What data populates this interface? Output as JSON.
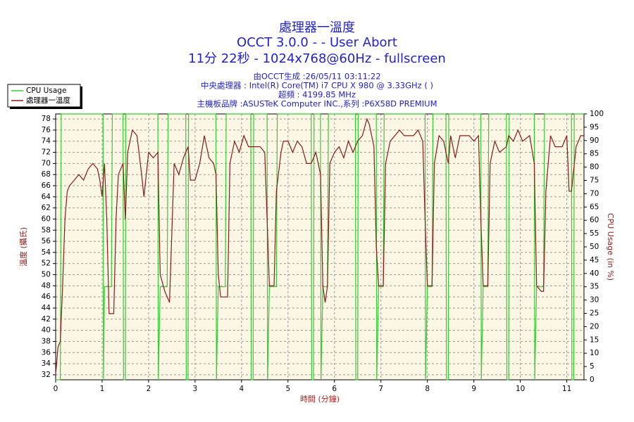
{
  "chart_data": {
    "type": "line",
    "title": "處理器一溫度",
    "subtitle": "OCCT 3.0.0 -  - User Abort",
    "subtitle2": "11分 22秒 - 1024x768@60Hz - fullscreen",
    "info": [
      "由OCCT生成 :26/05/11 03:11:22",
      "中央處理器 : Intel(R) Core(TM) i7 CPU X 980 @ 3.33GHz (  )",
      "超頻 : 4199.85 MHz",
      "主機板品牌 :ASUSTeK Computer INC.,系列 :P6X58D PREMIUM"
    ],
    "x_label": "時間 (分鐘)",
    "y_label": "溫度 (攝氏)",
    "y2_label": "CPU Usage (in %)",
    "xlim": [
      0,
      11.37
    ],
    "xticks": [
      0,
      1,
      2,
      3,
      4,
      5,
      6,
      7,
      8,
      9,
      10,
      11
    ],
    "ylim": [
      31.1,
      78.9
    ],
    "yticks": [
      32,
      34,
      36,
      38,
      40,
      42,
      44,
      46,
      48,
      50,
      52,
      54,
      56,
      58,
      60,
      62,
      64,
      66,
      68,
      70,
      72,
      74,
      76,
      78
    ],
    "y2lim": [
      0,
      100
    ],
    "y2ticks": [
      0,
      5,
      10,
      15,
      20,
      25,
      30,
      35,
      40,
      45,
      50,
      55,
      60,
      65,
      70,
      75,
      80,
      85,
      90,
      95,
      100
    ],
    "grid": true,
    "legend": "upper left",
    "series": [
      {
        "name": "CPU Usage",
        "color": "#33cc33",
        "axis": "y2",
        "x": [
          0,
          0.1,
          0.12,
          1.02,
          1.03,
          1.05,
          1.2,
          1.22,
          1.45,
          1.46,
          1.5,
          1.51,
          2.2,
          2.21,
          2.25,
          2.4,
          2.42,
          2.8,
          2.81,
          2.85,
          2.86,
          3.45,
          3.46,
          3.5,
          3.65,
          3.67,
          4.2,
          4.21,
          4.25,
          4.26,
          4.55,
          4.56,
          4.6,
          4.75,
          4.77,
          5.5,
          5.51,
          5.55,
          5.56,
          5.7,
          5.71,
          5.75,
          5.85,
          5.87,
          6.45,
          6.46,
          6.5,
          6.51,
          6.9,
          6.91,
          6.95,
          7.05,
          7.07,
          7.95,
          7.96,
          8.0,
          8.1,
          8.12,
          8.4,
          8.41,
          8.45,
          8.46,
          9.15,
          9.16,
          9.2,
          9.3,
          9.32,
          9.7,
          9.71,
          9.75,
          9.76,
          10.3,
          10.31,
          10.35,
          10.5,
          10.52,
          11.1,
          11.11,
          11.15,
          11.16,
          11.37
        ],
        "values": [
          0,
          0,
          100,
          100,
          0,
          35,
          35,
          100,
          100,
          0,
          0,
          100,
          100,
          0,
          35,
          35,
          100,
          100,
          0,
          0,
          100,
          100,
          0,
          35,
          35,
          100,
          100,
          0,
          0,
          100,
          100,
          0,
          35,
          35,
          100,
          100,
          0,
          0,
          100,
          100,
          0,
          35,
          35,
          100,
          100,
          0,
          0,
          100,
          100,
          0,
          35,
          35,
          100,
          100,
          0,
          35,
          35,
          100,
          100,
          0,
          0,
          100,
          100,
          0,
          35,
          35,
          100,
          100,
          0,
          0,
          100,
          100,
          0,
          35,
          35,
          100,
          100,
          0,
          0,
          100,
          100
        ]
      },
      {
        "name": "處理器一溫度",
        "color": "#8b1a1a",
        "axis": "y",
        "x": [
          0,
          0.05,
          0.1,
          0.15,
          0.2,
          0.25,
          0.3,
          0.4,
          0.5,
          0.6,
          0.7,
          0.8,
          0.9,
          0.95,
          1.0,
          1.05,
          1.1,
          1.15,
          1.25,
          1.3,
          1.35,
          1.45,
          1.5,
          1.55,
          1.65,
          1.75,
          1.85,
          1.9,
          2.0,
          2.1,
          2.2,
          2.25,
          2.35,
          2.45,
          2.55,
          2.65,
          2.75,
          2.85,
          2.9,
          3.0,
          3.1,
          3.2,
          3.3,
          3.4,
          3.45,
          3.5,
          3.55,
          3.7,
          3.75,
          3.85,
          3.95,
          4.05,
          4.15,
          4.3,
          4.4,
          4.5,
          4.55,
          4.6,
          4.7,
          4.75,
          4.85,
          4.9,
          5.0,
          5.1,
          5.2,
          5.3,
          5.4,
          5.5,
          5.6,
          5.7,
          5.75,
          5.8,
          5.85,
          5.9,
          6.0,
          6.1,
          6.2,
          6.3,
          6.4,
          6.5,
          6.6,
          6.7,
          6.75,
          6.85,
          6.9,
          6.95,
          7.05,
          7.1,
          7.2,
          7.3,
          7.4,
          7.5,
          7.7,
          7.8,
          7.9,
          7.95,
          8.0,
          8.1,
          8.15,
          8.25,
          8.35,
          8.45,
          8.5,
          8.6,
          8.7,
          8.9,
          9.0,
          9.1,
          9.15,
          9.2,
          9.3,
          9.35,
          9.45,
          9.55,
          9.7,
          9.75,
          9.85,
          9.95,
          10.05,
          10.2,
          10.3,
          10.35,
          10.45,
          10.5,
          10.55,
          10.65,
          10.75,
          10.9,
          11.0,
          11.05,
          11.1,
          11.2,
          11.3,
          11.37
        ],
        "values": [
          32,
          37,
          38,
          48,
          60,
          65,
          66,
          67,
          68,
          67,
          69,
          70,
          69,
          67,
          64,
          70,
          60,
          43,
          43,
          60,
          68,
          70,
          60,
          72,
          76,
          75,
          68,
          64,
          72,
          71,
          72,
          50,
          47,
          45,
          70,
          68,
          71,
          73,
          67,
          67,
          70,
          75,
          71,
          70,
          68,
          50,
          46,
          46,
          70,
          74,
          72,
          75,
          73,
          73,
          73,
          72,
          60,
          48,
          48,
          65,
          72,
          74,
          74,
          72,
          74,
          73,
          70,
          70,
          72,
          68,
          48,
          45,
          48,
          70,
          72,
          73,
          71,
          74,
          72,
          74,
          75,
          78,
          77,
          73,
          55,
          48,
          48,
          70,
          74,
          75,
          76,
          75,
          75,
          76,
          74,
          60,
          48,
          48,
          70,
          75,
          74,
          70,
          75,
          71,
          75,
          75,
          74,
          75,
          60,
          48,
          48,
          70,
          74,
          72,
          73,
          75,
          74,
          76,
          74,
          75,
          70,
          48,
          47,
          47,
          65,
          75,
          73,
          73,
          75,
          65,
          65,
          73,
          75,
          75
        ]
      }
    ]
  }
}
